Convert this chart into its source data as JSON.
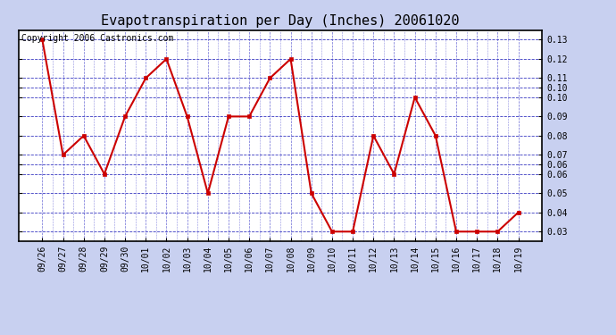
{
  "title": "Evapotranspiration per Day (Inches) 20061020",
  "copyright_text": "Copyright 2006 Castronics.com",
  "dates": [
    "09/26",
    "09/27",
    "09/28",
    "09/29",
    "09/30",
    "10/01",
    "10/02",
    "10/03",
    "10/04",
    "10/05",
    "10/06",
    "10/07",
    "10/08",
    "10/09",
    "10/10",
    "10/11",
    "10/12",
    "10/13",
    "10/14",
    "10/15",
    "10/16",
    "10/17",
    "10/18",
    "10/19"
  ],
  "values": [
    0.13,
    0.07,
    0.08,
    0.06,
    0.09,
    0.11,
    0.12,
    0.09,
    0.05,
    0.09,
    0.09,
    0.11,
    0.12,
    0.05,
    0.03,
    0.03,
    0.08,
    0.06,
    0.1,
    0.08,
    0.03,
    0.03,
    0.03,
    0.04
  ],
  "ylim_min": 0.025,
  "ylim_max": 0.135,
  "ytick_vals": [
    0.03,
    0.04,
    0.05,
    0.06,
    0.06,
    0.07,
    0.08,
    0.09,
    0.1,
    0.1,
    0.11,
    0.12,
    0.13
  ],
  "ytick_labels": [
    "0.03",
    "0.04",
    "0.05",
    "0.06",
    "0.06",
    "0.07",
    "0.08",
    "0.09",
    "0.10",
    "0.10",
    "0.11",
    "0.12",
    "0.13"
  ],
  "line_color": "#cc0000",
  "marker_color": "#cc0000",
  "outer_bg_color": "#c8d0f0",
  "plot_bg_color": "#ffffff",
  "grid_color_major_h": "#2222bb",
  "grid_color_minor_v": "#4444cc",
  "border_color": "#000000",
  "title_fontsize": 11,
  "tick_fontsize": 7,
  "copyright_fontsize": 7,
  "linewidth": 1.5,
  "markersize": 3
}
